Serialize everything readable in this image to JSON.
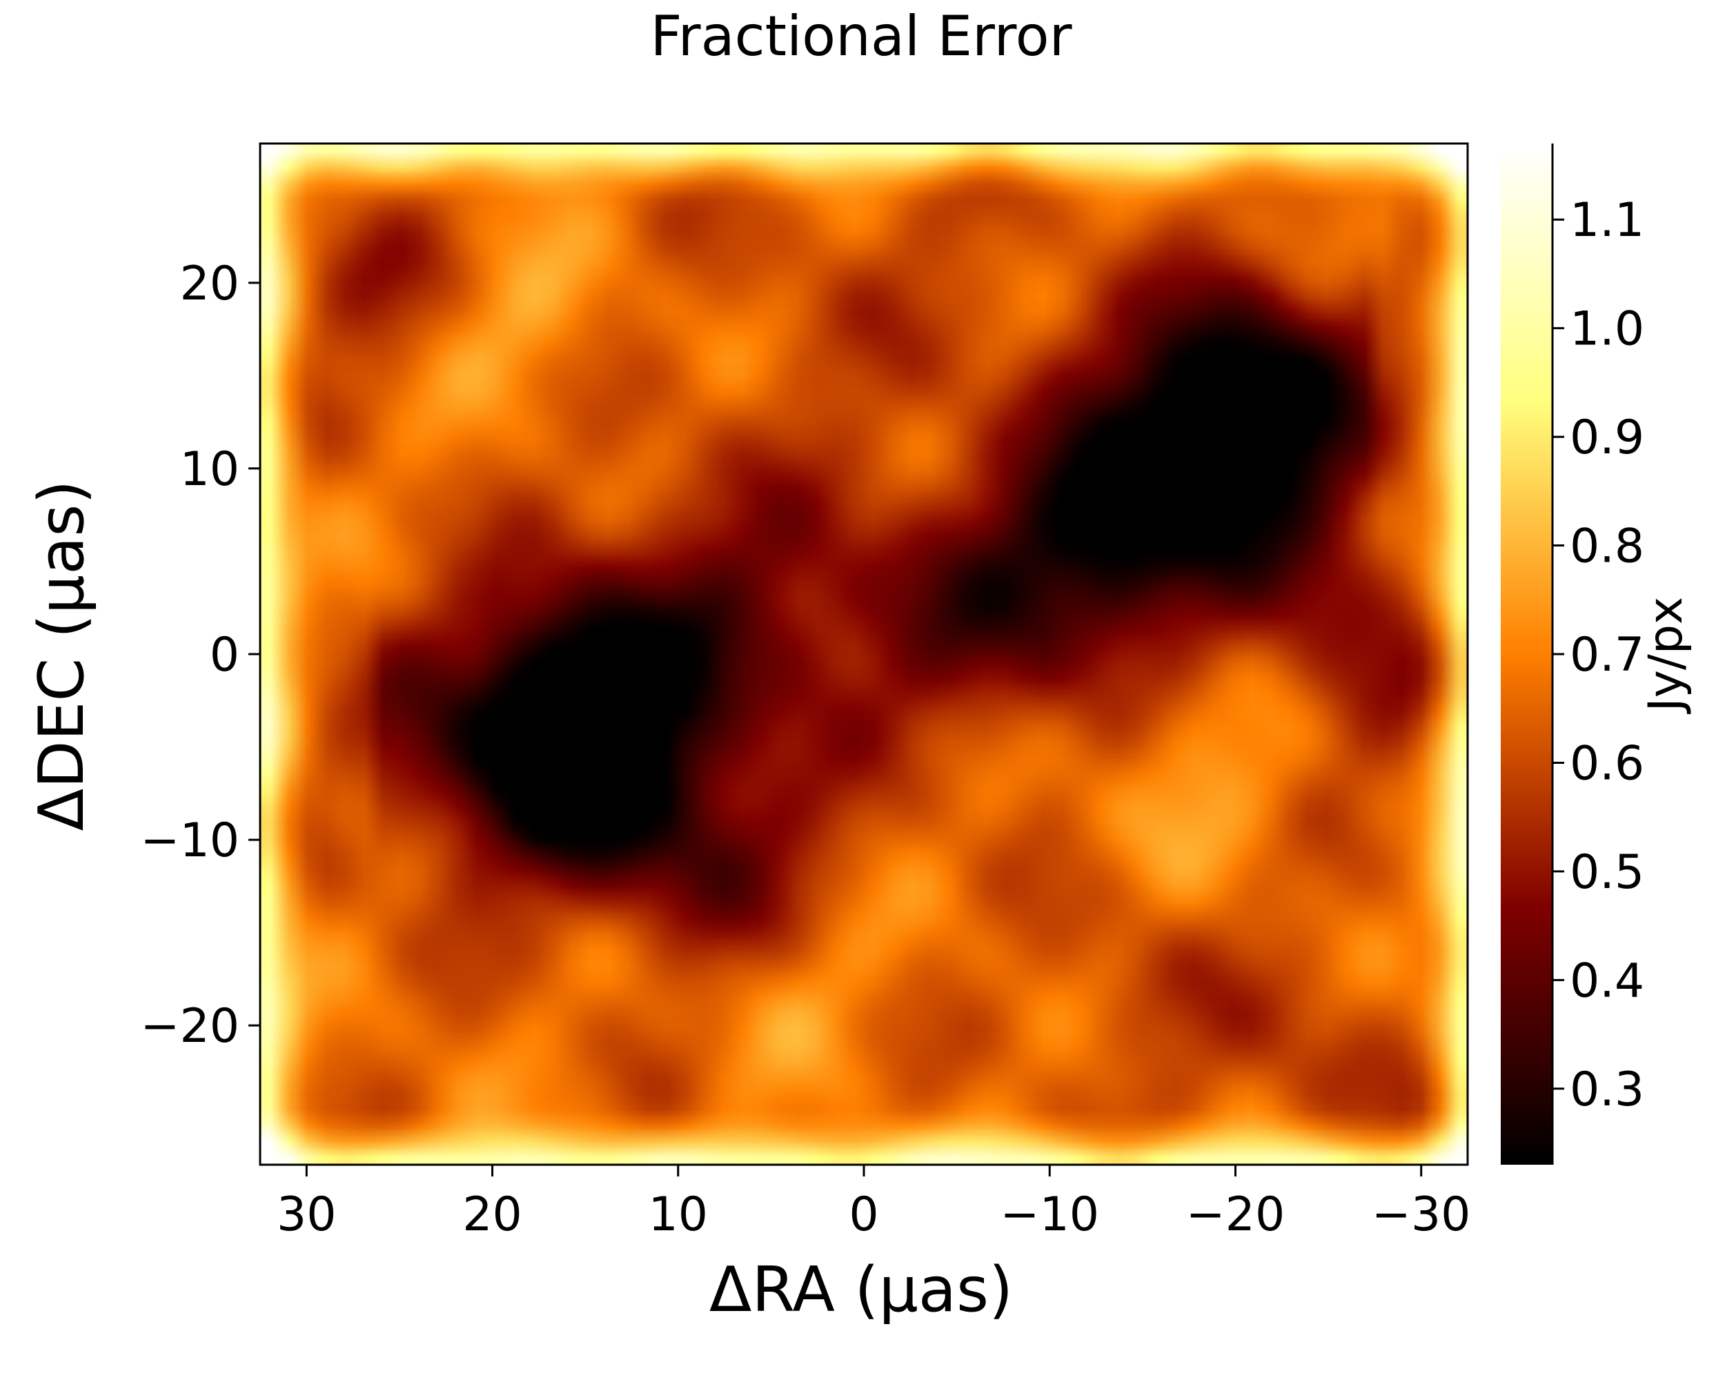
{
  "chart_data": {
    "type": "heatmap",
    "title": "Fractional Error",
    "xlabel": "ΔRA  (µas)",
    "ylabel": "ΔDEC (µas)",
    "colorbar_label": "Jy/px",
    "colormap": "afmhot",
    "x_direction": "decreasing",
    "xlim": [
      32.5,
      -32.5
    ],
    "ylim": [
      -27.5,
      27.5
    ],
    "x_ticks": [
      30,
      20,
      10,
      0,
      -10,
      -20,
      -30
    ],
    "x_tick_labels": [
      "30",
      "20",
      "10",
      "0",
      "−10",
      "−20",
      "−30"
    ],
    "y_ticks": [
      20,
      10,
      0,
      -10,
      -20
    ],
    "y_tick_labels": [
      "20",
      "10",
      "0",
      "−10",
      "−20"
    ],
    "colorbar_range": [
      0.23,
      1.17
    ],
    "colorbar_ticks": [
      1.1,
      1.0,
      0.9,
      0.8,
      0.7,
      0.6,
      0.5,
      0.4,
      0.3
    ],
    "colorbar_tick_labels": [
      "1.1",
      "1.0",
      "0.9",
      "0.8",
      "0.7",
      "0.6",
      "0.5",
      "0.4",
      "0.3"
    ],
    "features": [
      {
        "ra": 15,
        "dec": -2,
        "value": 0.3,
        "amp": 0.3,
        "sigma": 4
      },
      {
        "ra": 15,
        "dec": -7,
        "value": 0.28,
        "amp": 0.32,
        "sigma": 4
      },
      {
        "ra": 8,
        "dec": -11,
        "value": 0.38,
        "amp": 0.22,
        "sigma": 4
      },
      {
        "ra": 20,
        "dec": -5,
        "value": 0.42,
        "amp": 0.18,
        "sigma": 5
      },
      {
        "ra": 7,
        "dec": 2,
        "value": 0.42,
        "amp": 0.18,
        "sigma": 6
      },
      {
        "ra": -8,
        "dec": 2,
        "value": 0.4,
        "amp": 0.18,
        "sigma": 5
      },
      {
        "ra": -14,
        "dec": 6,
        "value": 0.3,
        "amp": 0.28,
        "sigma": 4
      },
      {
        "ra": -20,
        "dec": 11,
        "value": 0.32,
        "amp": 0.26,
        "sigma": 4
      },
      {
        "ra": -21,
        "dec": 15,
        "value": 0.3,
        "amp": 0.28,
        "sigma": 4
      },
      {
        "ra": -14,
        "dec": 13,
        "value": 0.42,
        "amp": 0.15,
        "sigma": 5
      },
      {
        "ra": -25,
        "dec": 4,
        "value": 0.42,
        "amp": 0.16,
        "sigma": 4
      },
      {
        "ra": -27,
        "dec": -2,
        "value": 0.5,
        "amp": 0.12,
        "sigma": 3
      },
      {
        "ra": 27,
        "dec": 20,
        "value": 0.48,
        "amp": 0.14,
        "sigma": 3
      },
      {
        "ra": -25,
        "dec": -22,
        "value": 0.5,
        "amp": 0.1,
        "sigma": 4
      },
      {
        "ra": -15,
        "dec": -18,
        "value": 0.52,
        "amp": 0.08,
        "sigma": 4
      },
      {
        "ra": 0,
        "dec": 20,
        "value": 0.52,
        "amp": 0.06,
        "sigma": 6
      },
      {
        "ra": 18,
        "dec": 18,
        "value": 0.75,
        "amp": -0.1,
        "sigma": 3
      },
      {
        "ra": -17,
        "dec": -6,
        "value": 0.75,
        "amp": -0.1,
        "sigma": 4
      },
      {
        "ra": 4,
        "dec": -18,
        "value": 0.74,
        "amp": -0.08,
        "sigma": 3
      }
    ]
  }
}
